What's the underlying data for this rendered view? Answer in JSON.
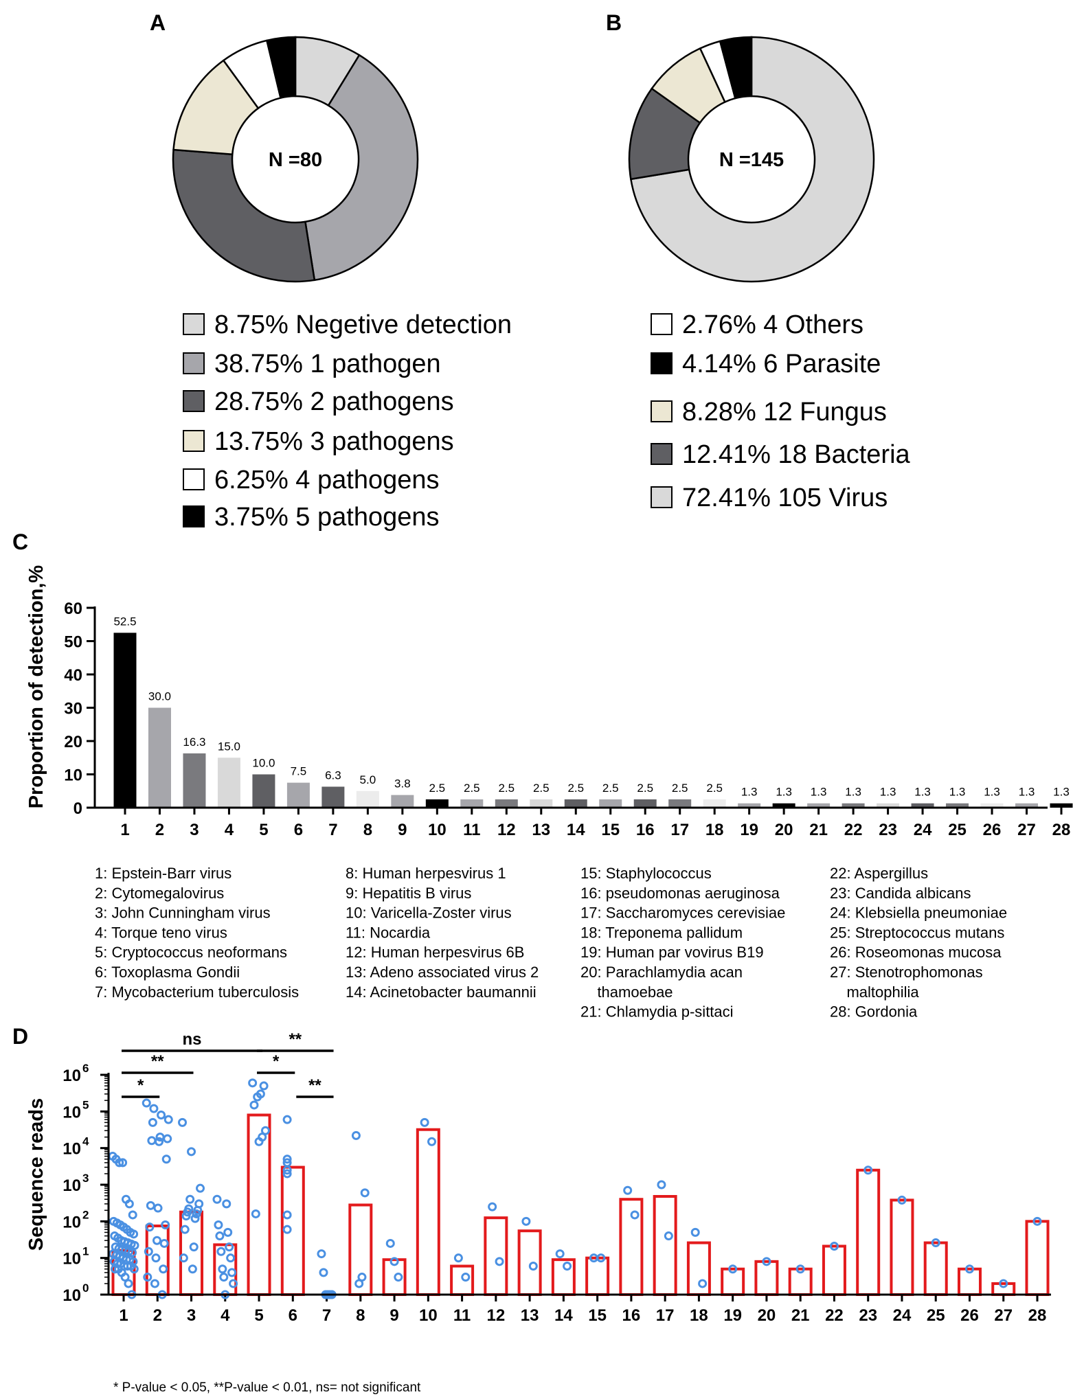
{
  "chart_data": [
    {
      "panel": "A",
      "type": "pie",
      "center_label": "N =80",
      "slices": [
        {
          "percent": 8.75,
          "label": "8.75%  Negetive detection",
          "color": "#d9d9d9"
        },
        {
          "percent": 38.75,
          "label": "38.75%  1 pathogen",
          "color": "#a6a6ab"
        },
        {
          "percent": 28.75,
          "label": "28.75%  2 pathogens",
          "color": "#5f5f63"
        },
        {
          "percent": 13.75,
          "label": "13.75%  3 pathogens",
          "color": "#ece7d3"
        },
        {
          "percent": 6.25,
          "label": "6.25%  4 pathogens",
          "color": "#ffffff"
        },
        {
          "percent": 3.75,
          "label": "3.75%  5 pathogens",
          "color": "#000000"
        }
      ]
    },
    {
      "panel": "B",
      "type": "pie",
      "center_label": "N =145",
      "slices": [
        {
          "percent": 72.41,
          "label": "72.41%  105 Virus",
          "color": "#d9d9d9"
        },
        {
          "percent": 12.41,
          "label": "12.41%  18 Bacteria",
          "color": "#5f5f63"
        },
        {
          "percent": 8.28,
          "label": "8.28%  12 Fungus",
          "color": "#ece7d3"
        },
        {
          "percent": 2.76,
          "label": "2.76%  4 Others",
          "color": "#ffffff"
        },
        {
          "percent": 4.14,
          "label": "4.14%  6 Parasite",
          "color": "#000000"
        }
      ],
      "legend_order": [
        3,
        4,
        2,
        1,
        0
      ]
    },
    {
      "panel": "C",
      "type": "bar",
      "ylabel": "Proportion of detection,%",
      "ylim": [
        0,
        60
      ],
      "yticks": [
        "0",
        "10",
        "20",
        "30",
        "40",
        "50",
        "60"
      ],
      "categories": [
        "1",
        "2",
        "3",
        "4",
        "5",
        "6",
        "7",
        "8",
        "9",
        "10",
        "11",
        "12",
        "13",
        "14",
        "15",
        "16",
        "17",
        "18",
        "19",
        "20",
        "21",
        "22",
        "23",
        "24",
        "25",
        "26",
        "27",
        "28"
      ],
      "values": [
        52.5,
        30.0,
        16.3,
        15.0,
        10.0,
        7.5,
        6.3,
        5.0,
        3.8,
        2.5,
        2.5,
        2.5,
        2.5,
        2.5,
        2.5,
        2.5,
        2.5,
        2.5,
        1.3,
        1.3,
        1.3,
        1.3,
        1.3,
        1.3,
        1.3,
        1.3,
        1.3,
        1.3
      ],
      "value_labels": [
        "52.5",
        "30.0",
        "16.3",
        "15.0",
        "10.0",
        "7.5",
        "6.3",
        "5.0",
        "3.8",
        "2.5",
        "2.5",
        "2.5",
        "2.5",
        "2.5",
        "2.5",
        "2.5",
        "2.5",
        "2.5",
        "1.3",
        "1.3",
        "1.3",
        "1.3",
        "1.3",
        "1.3",
        "1.3",
        "1.3",
        "1.3",
        "1.3"
      ],
      "colors": [
        "#000000",
        "#a6a6ab",
        "#7a7a7e",
        "#d9d9d9",
        "#5f5f63",
        "#a6a6ab",
        "#5f5f63",
        "#ececec",
        "#a6a6ab",
        "#000000",
        "#a6a6ab",
        "#7a7a7e",
        "#d9d9d9",
        "#5f5f63",
        "#a6a6ab",
        "#5f5f63",
        "#7a7a7e",
        "#ececec",
        "#a6a6ab",
        "#000000",
        "#a6a6ab",
        "#7a7a7e",
        "#d9d9d9",
        "#5f5f63",
        "#7a7a7e",
        "#ececec",
        "#a6a6ab",
        "#000000"
      ],
      "key_columns": [
        [
          "1: Epstein-Barr virus",
          "2: Cytomegalovirus",
          "3: John Cunningham virus",
          "4: Torque teno virus",
          "5: Cryptococcus neoformans",
          "6: Toxoplasma Gondii",
          "7: Mycobacterium tuberculosis"
        ],
        [
          "8: Human herpesvirus 1",
          "9: Hepatitis B virus",
          "10: Varicella-Zoster virus",
          "11: Nocardia",
          "12: Human herpesvirus 6B",
          "13: Adeno associated virus 2",
          "14: Acinetobacter baumannii"
        ],
        [
          "15: Staphylococcus",
          "16: pseudomonas aeruginosa",
          "17: Saccharomyces cerevisiae",
          "18: Treponema pallidum",
          "19: Human par vovirus B19",
          "20: Parachlamydia acan",
          "    thamoebae",
          "21: Chlamydia p-sittaci"
        ],
        [
          "22: Aspergillus",
          "23: Candida albicans",
          "24: Klebsiella pneumoniae",
          "25: Streptococcus mutans",
          "26: Roseomonas mucosa",
          "27: Stenotrophomonas",
          "    maltophilia",
          "28: Gordonia"
        ]
      ]
    },
    {
      "panel": "D",
      "type": "bar",
      "scale": "log10",
      "ylabel": "Sequence reads",
      "ylim_exp": [
        0,
        6
      ],
      "yticks": [
        "10",
        "10",
        "10",
        "10",
        "10",
        "10",
        "10"
      ],
      "ytick_exponents": [
        "0",
        "1",
        "2",
        "3",
        "4",
        "5",
        "6"
      ],
      "categories": [
        "1",
        "2",
        "3",
        "4",
        "5",
        "6",
        "7",
        "8",
        "9",
        "10",
        "11",
        "12",
        "13",
        "14",
        "15",
        "16",
        "17",
        "18",
        "19",
        "20",
        "21",
        "22",
        "23",
        "24",
        "25",
        "26",
        "27",
        "28"
      ],
      "bar_values": [
        16,
        75,
        180,
        23,
        80000,
        3000,
        1,
        280,
        9,
        32000,
        6,
        125,
        55,
        9,
        10,
        400,
        480,
        26,
        5,
        8,
        5,
        21,
        2500,
        380,
        26,
        5,
        2,
        100
      ],
      "points": [
        [
          6000,
          5000,
          4000,
          4000,
          400,
          300,
          150,
          100,
          90,
          80,
          70,
          60,
          50,
          45,
          40,
          35,
          30,
          28,
          26,
          24,
          22,
          20,
          18,
          17,
          16,
          15,
          14,
          13,
          12,
          11,
          10,
          9,
          9,
          8,
          8,
          7,
          7,
          6,
          6,
          6,
          5,
          5,
          5,
          4,
          3,
          2,
          1
        ],
        [
          170000,
          120000,
          80000,
          60000,
          50000,
          20000,
          18000,
          16000,
          15000,
          5000,
          270,
          230,
          80,
          70,
          30,
          25,
          15,
          10,
          5,
          3,
          2,
          1
        ],
        [
          50000,
          8000,
          800,
          400,
          300,
          220,
          200,
          180,
          160,
          140,
          120,
          60,
          20,
          10,
          5
        ],
        [
          400,
          300,
          80,
          50,
          40,
          20,
          15,
          10,
          5,
          4,
          3,
          2,
          1
        ],
        [
          600000,
          500000,
          300000,
          250000,
          150000,
          30000,
          20000,
          15000,
          160
        ],
        [
          60000,
          5000,
          4000,
          2500,
          2000,
          150,
          60
        ],
        [
          13,
          4,
          1,
          1,
          1,
          1
        ],
        [
          22000,
          600,
          3,
          2
        ],
        [
          25,
          8,
          3
        ],
        [
          50000,
          15000
        ],
        [
          10,
          3
        ],
        [
          250,
          8
        ],
        [
          100,
          6
        ],
        [
          13,
          6
        ],
        [
          10,
          10
        ],
        [
          700,
          150
        ],
        [
          1000,
          40
        ],
        [
          50,
          2
        ],
        [
          5
        ],
        [
          8
        ],
        [
          5
        ],
        [
          21
        ],
        [
          2500
        ],
        [
          380
        ],
        [
          26
        ],
        [
          5
        ],
        [
          2
        ],
        [
          100
        ]
      ],
      "significance": [
        {
          "from": "1",
          "to": "4",
          "label": "ns"
        },
        {
          "from": "1",
          "to": "3",
          "label": "**"
        },
        {
          "from": "1",
          "to": "2",
          "label": "*"
        },
        {
          "from": "5",
          "to": "7",
          "label": "**"
        },
        {
          "from": "5",
          "to": "6",
          "label": "*"
        },
        {
          "from": "6",
          "to": "7",
          "label": "**"
        }
      ],
      "footnote": "* P-value < 0.05,  **P-value < 0.01, ns= not significant",
      "bar_color": "#e31a1c",
      "point_color": "#4a90e2"
    }
  ],
  "panels": {
    "a": "A",
    "b": "B",
    "c": "C",
    "d": "D"
  }
}
